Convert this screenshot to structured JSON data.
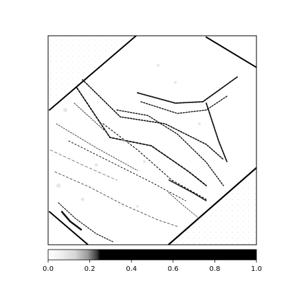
{
  "chart_data": {
    "type": "heatmap",
    "title": "",
    "xlabel": "",
    "ylabel": "",
    "colormap": "thresholded gray: white at 0, rising through light grays to about 0.25, then black up to 1.0",
    "colorbar": {
      "orientation": "horizontal",
      "placement": "below image",
      "range": [
        0,
        1.0
      ],
      "ticks": [
        0.0,
        0.2,
        0.4,
        0.6,
        0.8,
        1.0
      ],
      "tick_labels": [
        "0.0",
        "0.2",
        "0.4",
        "0.6",
        "0.8",
        "1.0"
      ],
      "stops": [
        {
          "value": 0.0,
          "color": "#ffffff"
        },
        {
          "value": 0.06,
          "color": "#f0f0f0"
        },
        {
          "value": 0.13,
          "color": "#d6d6d6"
        },
        {
          "value": 0.19,
          "color": "#9a9a9a"
        },
        {
          "value": 0.235,
          "color": "#3a3a3a"
        },
        {
          "value": 0.25,
          "color": "#000000"
        },
        {
          "value": 1.0,
          "color": "#000000"
        }
      ]
    },
    "image": {
      "description": "edge/saliency map of a rotated rectangular scene on a white background",
      "axes_visible": false
    }
  }
}
